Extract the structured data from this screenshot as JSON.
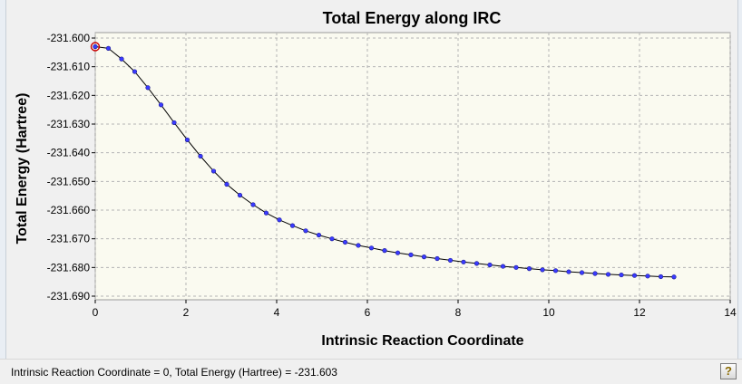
{
  "chart_data": {
    "type": "line",
    "title": "Total Energy along IRC",
    "xlabel": "Intrinsic Reaction Coordinate",
    "ylabel": "Total Energy (Hartree)",
    "xlim": [
      0,
      14
    ],
    "ylim": [
      -231.69,
      -231.6
    ],
    "xticks": [
      0,
      2,
      4,
      6,
      8,
      10,
      12,
      14
    ],
    "yticks": [
      -231.6,
      -231.61,
      -231.62,
      -231.63,
      -231.64,
      -231.65,
      -231.66,
      -231.67,
      -231.68,
      -231.69
    ],
    "grid": true,
    "colors": {
      "plot_bg": "#fafaf0",
      "line": "#000000",
      "marker": "#3a3aff",
      "highlight": "#cc0000"
    },
    "highlighted_point": {
      "x": 0,
      "y": -231.603
    },
    "series": [
      {
        "x": [
          0.0,
          0.29,
          0.58,
          0.87,
          1.16,
          1.45,
          1.74,
          2.03,
          2.32,
          2.61,
          2.9,
          3.19,
          3.48,
          3.77,
          4.06,
          4.35,
          4.64,
          4.93,
          5.22,
          5.51,
          5.8,
          6.09,
          6.38,
          6.67,
          6.96,
          7.25,
          7.54,
          7.83,
          8.12,
          8.41,
          8.7,
          8.99,
          9.28,
          9.57,
          9.86,
          10.15,
          10.44,
          10.73,
          11.02,
          11.31,
          11.6,
          11.89,
          12.18,
          12.47,
          12.76
        ],
        "y": [
          -231.603,
          -231.6036,
          -231.6073,
          -231.6117,
          -231.6173,
          -231.6233,
          -231.6295,
          -231.6355,
          -231.6412,
          -231.6464,
          -231.651,
          -231.6548,
          -231.6581,
          -231.661,
          -231.6634,
          -231.6654,
          -231.6672,
          -231.6687,
          -231.67,
          -231.6712,
          -231.6723,
          -231.6732,
          -231.6741,
          -231.6749,
          -231.6756,
          -231.6763,
          -231.6769,
          -231.6775,
          -231.6781,
          -231.6786,
          -231.6791,
          -231.6796,
          -231.68,
          -231.6804,
          -231.6808,
          -231.6811,
          -231.6815,
          -231.6818,
          -231.6821,
          -231.6824,
          -231.6826,
          -231.6828,
          -231.683,
          -231.6832,
          -231.6833
        ]
      }
    ]
  },
  "status": {
    "text": "Intrinsic Reaction Coordinate = 0, Total Energy (Hartree) = -231.603",
    "help_label": "?"
  }
}
